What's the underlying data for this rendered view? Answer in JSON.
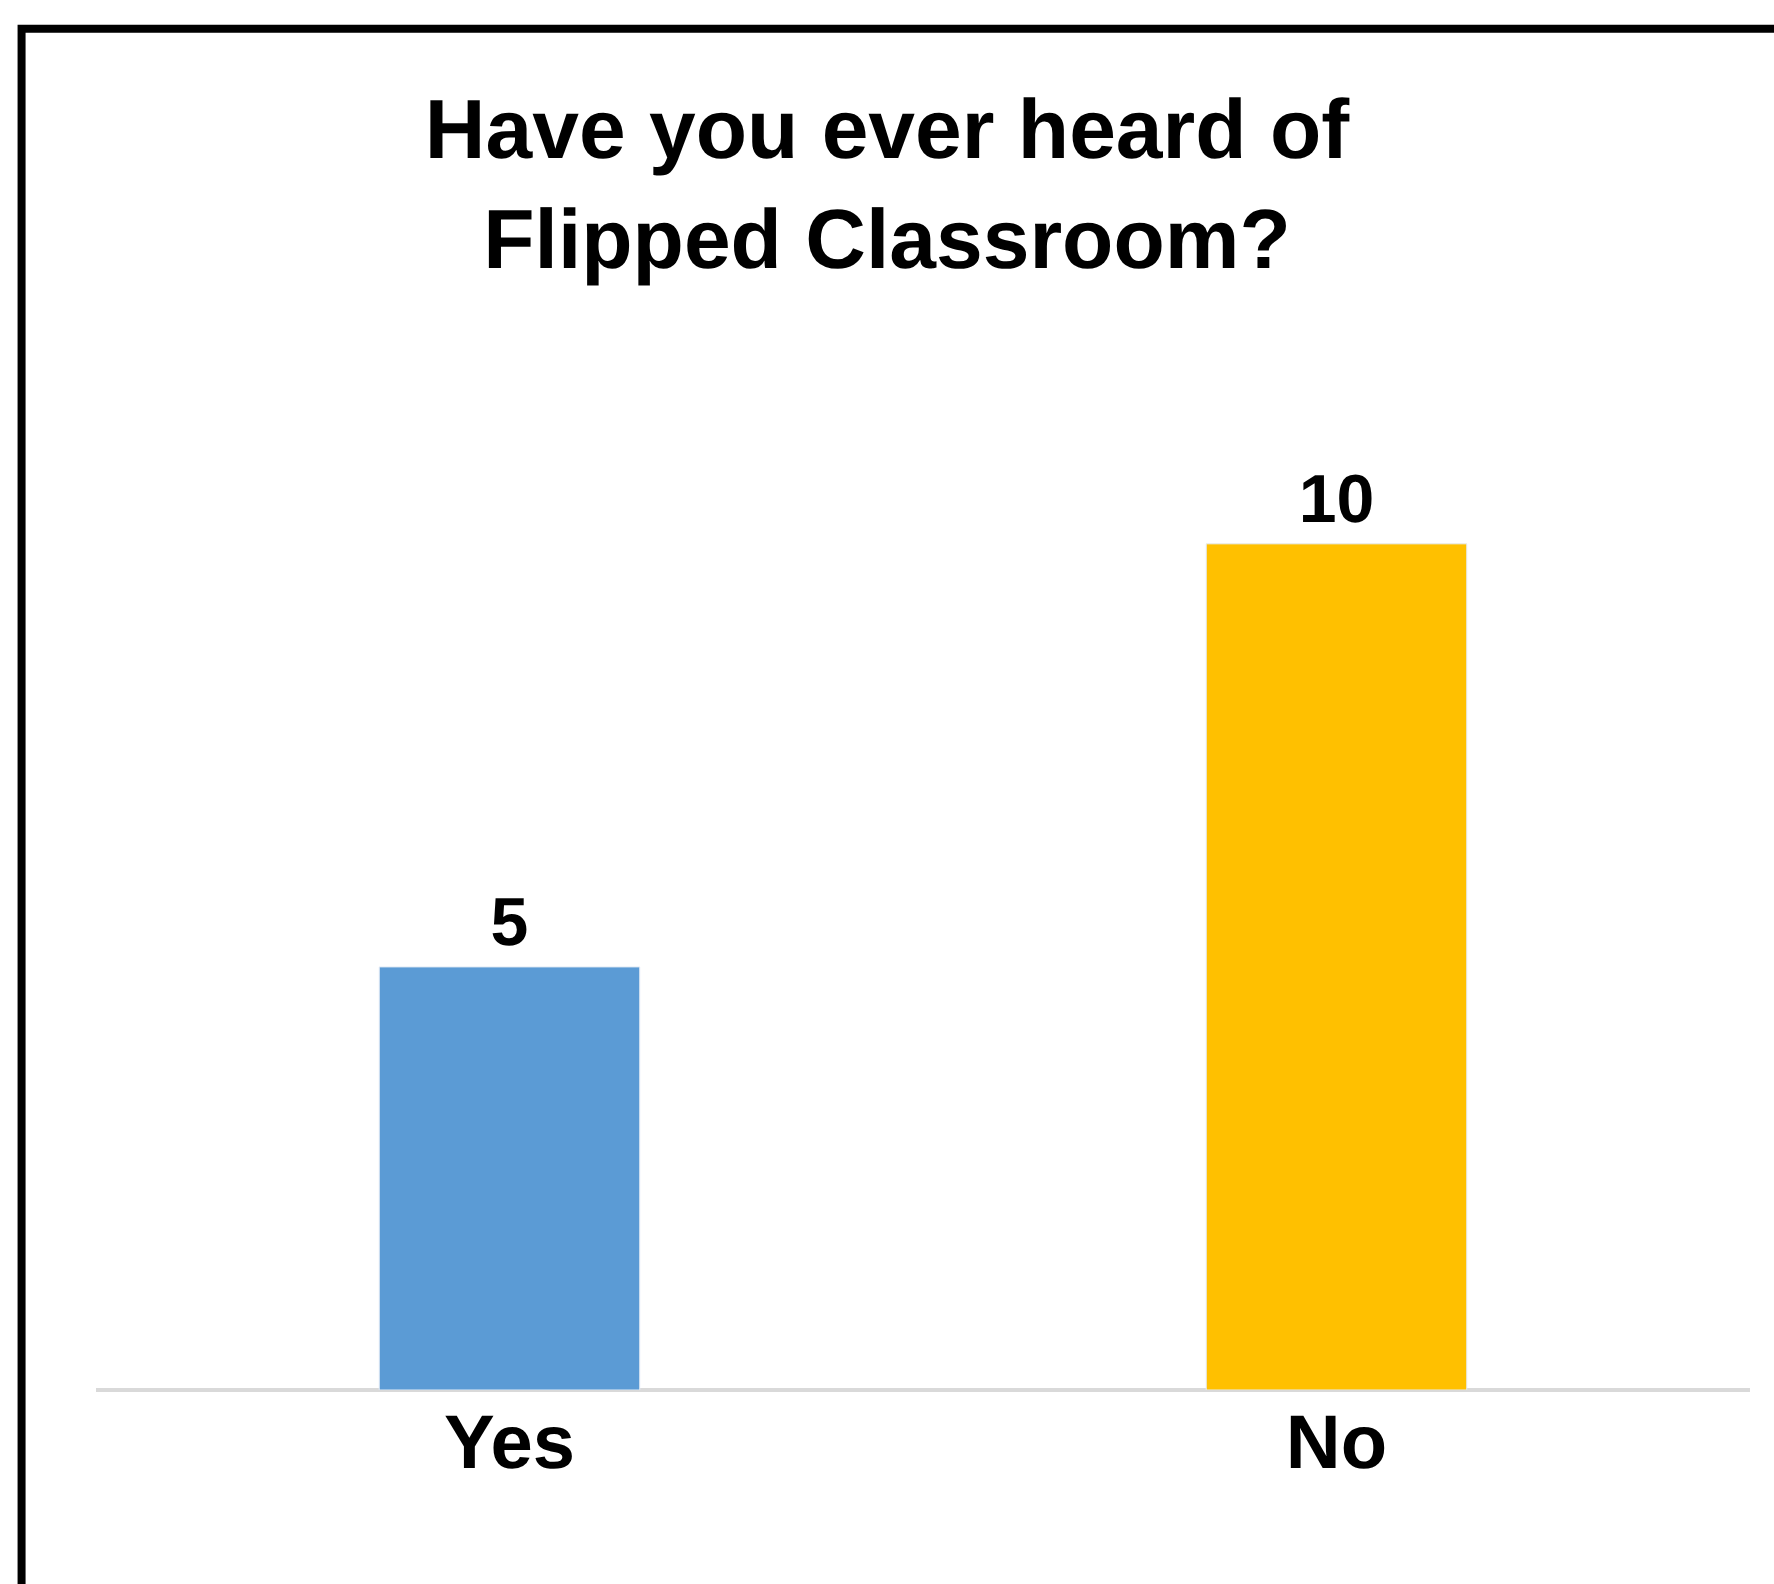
{
  "chart_data": {
    "type": "bar",
    "title": "Have you ever heard of\nFlipped Classroom?",
    "categories": [
      "Yes",
      "No"
    ],
    "values": [
      5,
      10
    ],
    "colors": [
      "#5b9bd5",
      "#ffc000"
    ],
    "data_labels": true,
    "legend": false
  }
}
